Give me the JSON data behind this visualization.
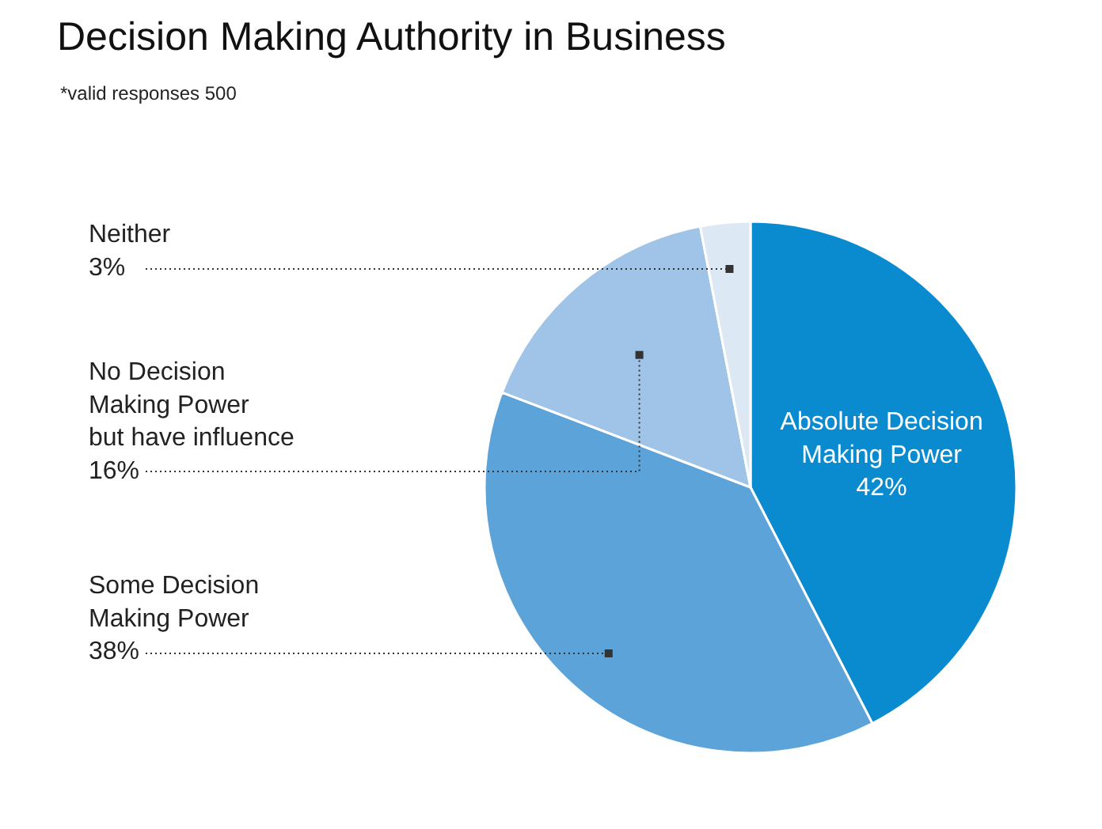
{
  "chart_data": {
    "type": "pie",
    "title": "Decision Making Authority in Business",
    "subtitle": "*valid responses 500",
    "categories": [
      "Absolute Decision\nMaking Power",
      "Some Decision\nMaking Power",
      "No Decision\nMaking Power\nbut have influence",
      "Neither"
    ],
    "values": [
      42,
      38,
      16,
      3
    ],
    "colors": [
      "#0a8bd0",
      "#5ba3d9",
      "#a0c4e8",
      "#dde8f5"
    ],
    "value_labels": [
      "42%",
      "38%",
      "16%",
      "3%"
    ],
    "legend": false
  }
}
